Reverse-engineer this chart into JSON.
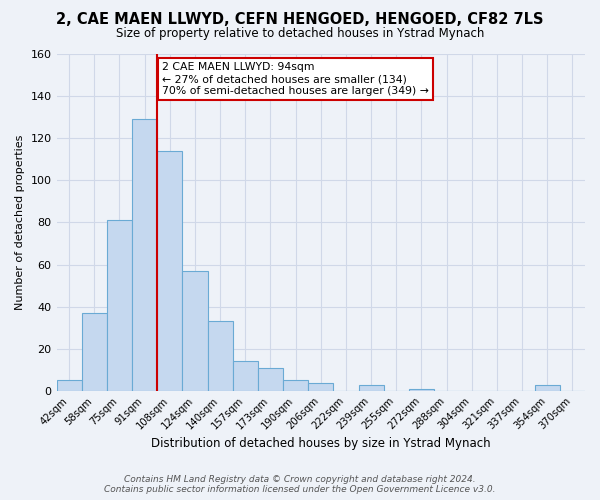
{
  "title": "2, CAE MAEN LLWYD, CEFN HENGOED, HENGOED, CF82 7LS",
  "subtitle": "Size of property relative to detached houses in Ystrad Mynach",
  "xlabel": "Distribution of detached houses by size in Ystrad Mynach",
  "ylabel": "Number of detached properties",
  "bar_labels": [
    "42sqm",
    "58sqm",
    "75sqm",
    "91sqm",
    "108sqm",
    "124sqm",
    "140sqm",
    "157sqm",
    "173sqm",
    "190sqm",
    "206sqm",
    "222sqm",
    "239sqm",
    "255sqm",
    "272sqm",
    "288sqm",
    "304sqm",
    "321sqm",
    "337sqm",
    "354sqm",
    "370sqm"
  ],
  "bar_values": [
    5,
    37,
    81,
    129,
    114,
    57,
    33,
    14,
    11,
    5,
    4,
    0,
    3,
    0,
    1,
    0,
    0,
    0,
    0,
    3,
    0
  ],
  "bar_color": "#c5d8ef",
  "bar_edge_color": "#6aaad4",
  "vline_color": "#cc0000",
  "annotation_text": "2 CAE MAEN LLWYD: 94sqm\n← 27% of detached houses are smaller (134)\n70% of semi-detached houses are larger (349) →",
  "annotation_box_color": "#ffffff",
  "annotation_box_edge": "#cc0000",
  "ylim": [
    0,
    160
  ],
  "yticks": [
    0,
    20,
    40,
    60,
    80,
    100,
    120,
    140,
    160
  ],
  "footer": "Contains HM Land Registry data © Crown copyright and database right 2024.\nContains public sector information licensed under the Open Government Licence v3.0.",
  "background_color": "#eef2f8",
  "grid_color": "#d0d8e8"
}
